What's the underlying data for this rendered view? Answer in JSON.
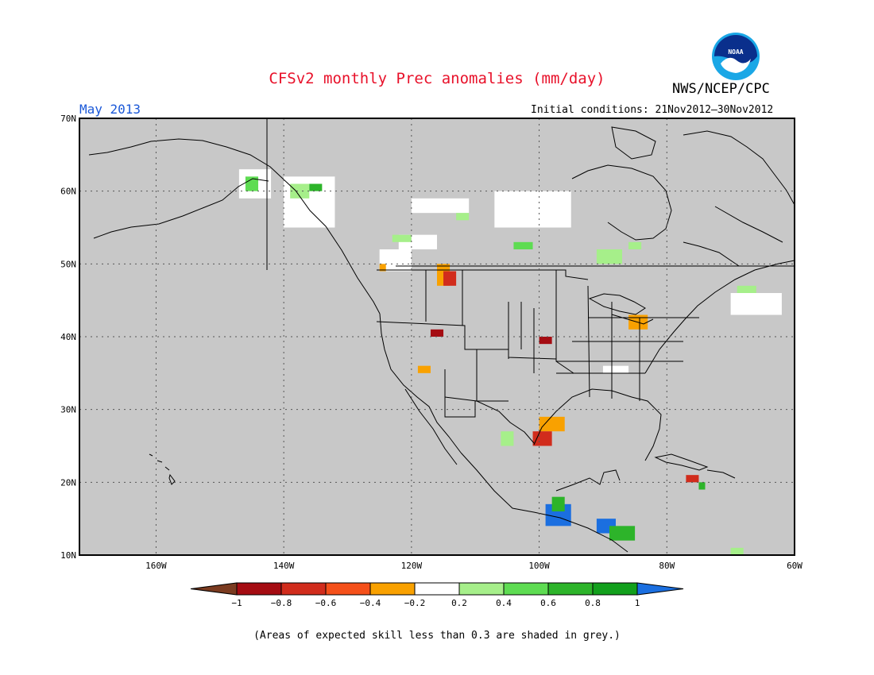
{
  "header": {
    "title": "CFSv2 monthly Prec anomalies (mm/day)",
    "target_month": "May 2013",
    "initial_conditions": "Initial conditions: 21Nov2012–30Nov2012",
    "agency": "NWS/NCEP/CPC",
    "logo_text": "NOAA"
  },
  "map": {
    "lon_range": [
      -172,
      -60
    ],
    "lat_range": [
      10,
      70
    ],
    "background_color": "#c8c8c8",
    "lat_ticks": [
      {
        "value": 70,
        "label": "70N"
      },
      {
        "value": 60,
        "label": "60N"
      },
      {
        "value": 50,
        "label": "50N"
      },
      {
        "value": 40,
        "label": "40N"
      },
      {
        "value": 30,
        "label": "30N"
      },
      {
        "value": 20,
        "label": "20N"
      },
      {
        "value": 10,
        "label": "10N"
      }
    ],
    "lon_ticks": [
      {
        "value": -160,
        "label": "160W"
      },
      {
        "value": -140,
        "label": "140W"
      },
      {
        "value": -120,
        "label": "120W"
      },
      {
        "value": -100,
        "label": "100W"
      },
      {
        "value": -80,
        "label": "80W"
      },
      {
        "value": -60,
        "label": "60W"
      }
    ],
    "anomaly_regions": [
      {
        "lon": -147,
        "lat": 63,
        "w": 5,
        "h": 4,
        "value": 0
      },
      {
        "lon": -140,
        "lat": 62,
        "w": 8,
        "h": 7,
        "value": 0
      },
      {
        "lon": -146,
        "lat": 62,
        "w": 2,
        "h": 2,
        "value": 0.5
      },
      {
        "lon": -139,
        "lat": 61,
        "w": 3,
        "h": 2,
        "value": 0.3
      },
      {
        "lon": -136,
        "lat": 61,
        "w": 2,
        "h": 1,
        "value": 0.6
      },
      {
        "lon": -120,
        "lat": 59,
        "w": 9,
        "h": 2,
        "value": 0
      },
      {
        "lon": -113,
        "lat": 57,
        "w": 2,
        "h": 1,
        "value": 0.3
      },
      {
        "lon": -107,
        "lat": 60,
        "w": 12,
        "h": 5,
        "value": 0
      },
      {
        "lon": -122,
        "lat": 54,
        "w": 6,
        "h": 2,
        "value": 0
      },
      {
        "lon": -125,
        "lat": 52,
        "w": 5,
        "h": 3,
        "value": 0
      },
      {
        "lon": -123,
        "lat": 54,
        "w": 3,
        "h": 1,
        "value": 0.3
      },
      {
        "lon": -116,
        "lat": 50,
        "w": 2,
        "h": 3,
        "value": -0.3
      },
      {
        "lon": -115,
        "lat": 49,
        "w": 2,
        "h": 2,
        "value": -0.5
      },
      {
        "lon": -125,
        "lat": 50,
        "w": 1,
        "h": 1,
        "value": -0.3
      },
      {
        "lon": -104,
        "lat": 53,
        "w": 3,
        "h": 1,
        "value": 0.5
      },
      {
        "lon": -91,
        "lat": 52,
        "w": 4,
        "h": 2,
        "value": 0.3
      },
      {
        "lon": -86,
        "lat": 53,
        "w": 2,
        "h": 1,
        "value": 0.3
      },
      {
        "lon": -117,
        "lat": 41,
        "w": 2,
        "h": 1,
        "value": -0.8
      },
      {
        "lon": -100,
        "lat": 40,
        "w": 2,
        "h": 1,
        "value": -0.7
      },
      {
        "lon": -86,
        "lat": 43,
        "w": 3,
        "h": 2,
        "value": -0.3
      },
      {
        "lon": -70,
        "lat": 46,
        "w": 8,
        "h": 3,
        "value": 0
      },
      {
        "lon": -69,
        "lat": 47,
        "w": 3,
        "h": 1,
        "value": 0.3
      },
      {
        "lon": -119,
        "lat": 36,
        "w": 2,
        "h": 1,
        "value": -0.3
      },
      {
        "lon": -90,
        "lat": 36,
        "w": 4,
        "h": 1,
        "value": 0
      },
      {
        "lon": -100,
        "lat": 29,
        "w": 4,
        "h": 2,
        "value": -0.3
      },
      {
        "lon": -101,
        "lat": 27,
        "w": 3,
        "h": 2,
        "value": -0.5
      },
      {
        "lon": -106,
        "lat": 27,
        "w": 2,
        "h": 2,
        "value": 0.3
      },
      {
        "lon": -99,
        "lat": 17,
        "w": 4,
        "h": 3,
        "value": 1
      },
      {
        "lon": -98,
        "lat": 18,
        "w": 2,
        "h": 2,
        "value": 0.7
      },
      {
        "lon": -91,
        "lat": 15,
        "w": 3,
        "h": 2,
        "value": 1
      },
      {
        "lon": -89,
        "lat": 14,
        "w": 4,
        "h": 2,
        "value": 0.7
      },
      {
        "lon": -77,
        "lat": 21,
        "w": 2,
        "h": 1,
        "value": -0.5
      },
      {
        "lon": -75,
        "lat": 20,
        "w": 1,
        "h": 1,
        "value": 0.6
      },
      {
        "lon": -70,
        "lat": 11,
        "w": 2,
        "h": 1,
        "value": 0.3
      }
    ]
  },
  "colorbar": {
    "labels": [
      "−1",
      "−0.8",
      "−0.6",
      "−0.4",
      "−0.2",
      "0.2",
      "0.4",
      "0.6",
      "0.8",
      "1"
    ],
    "colors": [
      "#7b3b20",
      "#a50c12",
      "#d12c1c",
      "#f5501a",
      "#f9a100",
      "#ffffff",
      "#a6ef8a",
      "#5edc52",
      "#2db42a",
      "#12a01c",
      "#1b6fe0"
    ]
  },
  "footnote": "(Areas of expected skill less than 0.3 are shaded in grey.)"
}
